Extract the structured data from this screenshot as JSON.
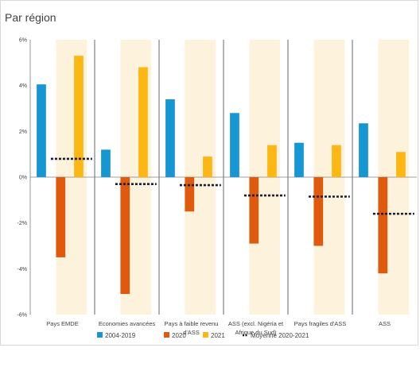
{
  "title": "Par région",
  "chart_data": {
    "type": "bar",
    "title": "Par région",
    "y_ticks": [
      "6%",
      "4%",
      "2%",
      "0%",
      "-2%",
      "-4%",
      "-6%"
    ],
    "ylim": [
      -6,
      6
    ],
    "categories": [
      [
        "Pays EMDE"
      ],
      [
        "Economies avancées"
      ],
      [
        "Pays à faible revenu",
        "d'ASS"
      ],
      [
        "ASS (excl. Nigéria et",
        "Afrique du Sud)"
      ],
      [
        "Pays fragiles d'ASS"
      ],
      [
        "ASS"
      ]
    ],
    "series": [
      {
        "name": "2004-2019",
        "color": "#1696d2",
        "values": [
          4.05,
          1.2,
          3.4,
          2.8,
          1.5,
          2.35
        ]
      },
      {
        "name": "2020",
        "color": "#e05a0e",
        "values": [
          -3.5,
          -5.1,
          -1.5,
          -2.9,
          -3.0,
          -4.2
        ]
      },
      {
        "name": "2021",
        "color": "#fdb714",
        "values": [
          5.3,
          4.8,
          0.9,
          1.4,
          1.4,
          1.1
        ]
      },
      {
        "name": "Moyenne 2020-2021",
        "color": "#1a1a2e",
        "style": "dotted",
        "values": [
          0.8,
          -0.3,
          -0.35,
          -0.8,
          -0.85,
          -1.6
        ]
      }
    ],
    "highlight_band_color": "#fdf3dc",
    "grid": false,
    "legend_position": "bottom"
  }
}
